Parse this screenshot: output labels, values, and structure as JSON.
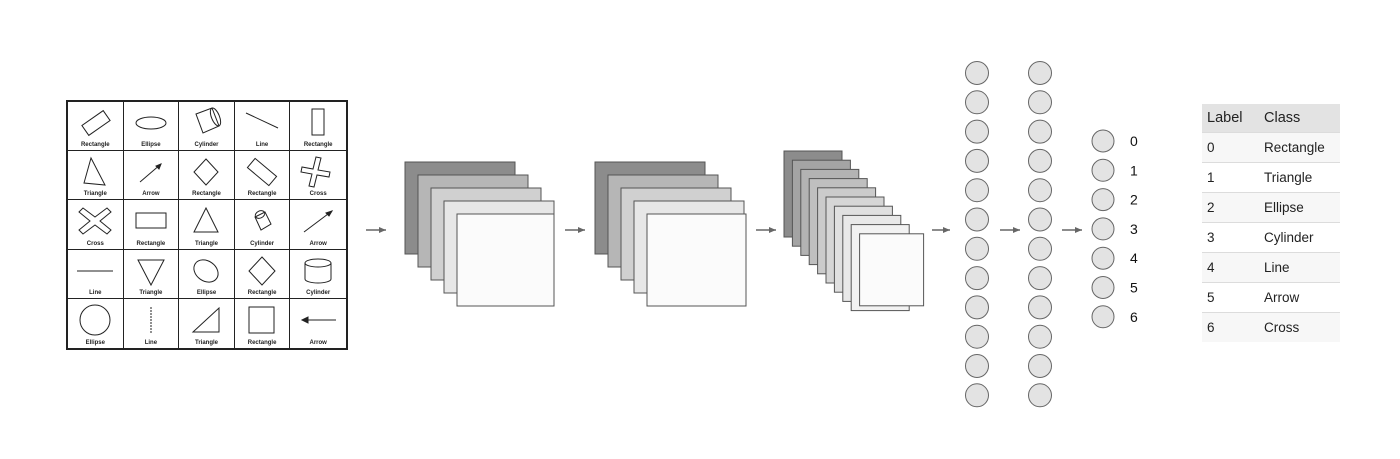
{
  "shape_grid": [
    [
      "Rectangle",
      "Ellipse",
      "Cylinder",
      "Line",
      "Rectangle"
    ],
    [
      "Triangle",
      "Arrow",
      "Rectangle",
      "Rectangle",
      "Cross"
    ],
    [
      "Cross",
      "Rectangle",
      "Triangle",
      "Cylinder",
      "Arrow"
    ],
    [
      "Line",
      "Triangle",
      "Ellipse",
      "Rectangle",
      "Cylinder"
    ],
    [
      "Ellipse",
      "Line",
      "Triangle",
      "Rectangle",
      "Arrow"
    ]
  ],
  "output_labels": [
    "0",
    "1",
    "2",
    "3",
    "4",
    "5",
    "6"
  ],
  "class_table": {
    "headers": [
      "Label",
      "Class"
    ],
    "rows": [
      [
        "0",
        "Rectangle"
      ],
      [
        "1",
        "Triangle"
      ],
      [
        "2",
        "Ellipse"
      ],
      [
        "3",
        "Cylinder"
      ],
      [
        "4",
        "Line"
      ],
      [
        "5",
        "Arrow"
      ],
      [
        "6",
        "Cross"
      ]
    ]
  },
  "colors": {
    "node_fill": "#e3e3e3",
    "node_stroke": "#666666",
    "stack_dark": "#8c8c8c",
    "stack_light": "#fbfbfb",
    "arrow": "#666666"
  }
}
